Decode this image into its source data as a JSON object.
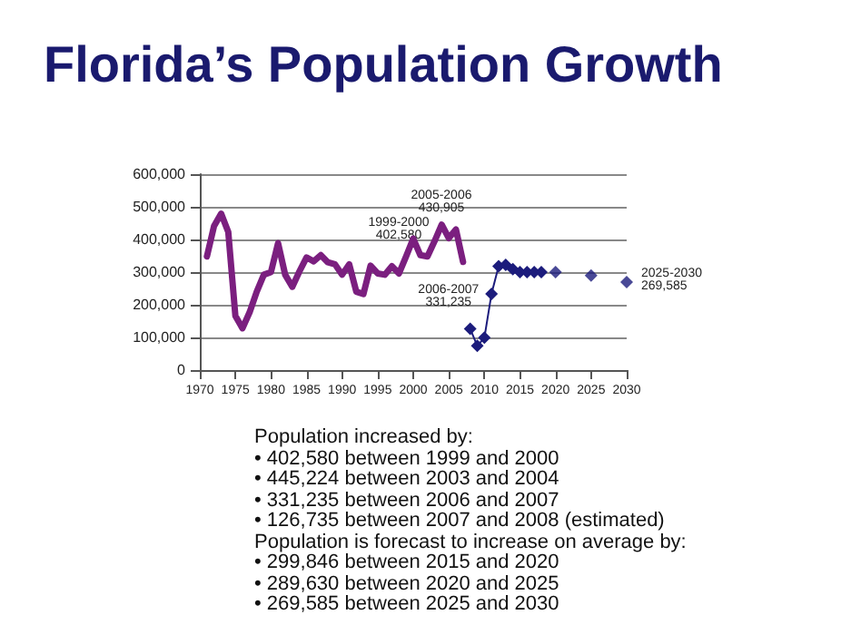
{
  "chart_data": {
    "type": "line",
    "title": "Florida’s Population Growth",
    "x": [
      1971,
      1972,
      1973,
      1974,
      1975,
      1976,
      1977,
      1978,
      1979,
      1980,
      1981,
      1982,
      1983,
      1984,
      1985,
      1986,
      1987,
      1988,
      1989,
      1990,
      1991,
      1992,
      1993,
      1994,
      1995,
      1996,
      1997,
      1998,
      1999,
      2000,
      2001,
      2002,
      2003,
      2004,
      2005,
      2006,
      2007
    ],
    "series": [
      {
        "color": "#7b1f7f",
        "marker": "none",
        "values": [
          348000,
          441000,
          479000,
          423000,
          166000,
          128000,
          177000,
          240000,
          292000,
          300000,
          389000,
          292000,
          255000,
          302000,
          345000,
          333000,
          352000,
          330000,
          324000,
          292000,
          324000,
          240000,
          233000,
          320000,
          296000,
          292000,
          318000,
          296000,
          348000,
          402580,
          352000,
          348000,
          395000,
          445224,
          404000,
          430905,
          331235
        ]
      },
      {
        "color": "#1c1c7c",
        "marker": "diamond",
        "x": [
          2008,
          2009,
          2010,
          2011,
          2012,
          2013,
          2014,
          2015,
          2016,
          2017,
          2018
        ],
        "values": [
          126735,
          74000,
          99000,
          233000,
          318000,
          322000,
          309000,
          300000,
          300000,
          300000,
          300000
        ]
      },
      {
        "type": "scatter",
        "color": "#1c1c7c",
        "marker": "diamond",
        "x": [
          2020,
          2025,
          2030
        ],
        "values": [
          299846,
          289630,
          269585
        ]
      }
    ],
    "xlim": [
      1970,
      2030
    ],
    "xticks": [
      1970,
      1975,
      1980,
      1985,
      1990,
      1995,
      2000,
      2005,
      2010,
      2015,
      2020,
      2025,
      2030
    ],
    "ylim": [
      0,
      600000
    ],
    "yticks": [
      0,
      {
        "value": 100000,
        "label": "100,000"
      },
      {
        "value": 200000,
        "label": "200,000"
      },
      {
        "value": 300000,
        "label": "300,000"
      },
      {
        "value": 400000,
        "label": "400,000"
      },
      {
        "value": 500000,
        "label": "500,000"
      },
      {
        "value": 600000,
        "label": "600,000"
      }
    ],
    "grid": "y",
    "line_style": "solid",
    "annotations": [
      {
        "text": "1999-2000\n402,580",
        "x": 2000,
        "y": 402580
      },
      {
        "text": "2005-2006\n430,905",
        "x": 2006,
        "y": 430905
      },
      {
        "text": "2006-2007\n331,235",
        "x": 2007,
        "y": 331235
      },
      {
        "text": "2025-2030\n269,585",
        "x": 2030,
        "y": 269585
      },
      "Population increased by:",
      "• 402,580 between 1999 and 2000",
      "• 445,224 between 2003 and 2004",
      "• 331,235 between 2006 and 2007",
      "• 126,735 between 2007 and 2008 (estimated)",
      "Population is forecast to increase on average by:",
      "• 299,846 between 2015 and 2020",
      "• 289,630 between 2020 and 2025",
      "• 269,585 between 2025 and 2030"
    ]
  }
}
